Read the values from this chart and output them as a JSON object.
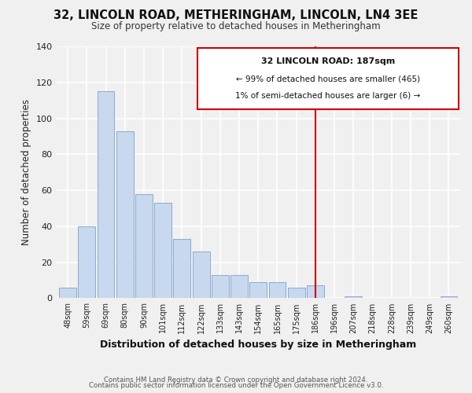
{
  "title": "32, LINCOLN ROAD, METHERINGHAM, LINCOLN, LN4 3EE",
  "subtitle": "Size of property relative to detached houses in Metheringham",
  "xlabel": "Distribution of detached houses by size in Metheringham",
  "ylabel": "Number of detached properties",
  "bar_labels": [
    "48sqm",
    "59sqm",
    "69sqm",
    "80sqm",
    "90sqm",
    "101sqm",
    "112sqm",
    "122sqm",
    "133sqm",
    "143sqm",
    "154sqm",
    "165sqm",
    "175sqm",
    "186sqm",
    "196sqm",
    "207sqm",
    "218sqm",
    "228sqm",
    "239sqm",
    "249sqm",
    "260sqm"
  ],
  "bar_values": [
    6,
    40,
    115,
    93,
    58,
    53,
    33,
    26,
    13,
    13,
    9,
    9,
    6,
    7,
    0,
    1,
    0,
    0,
    0,
    0,
    1
  ],
  "bar_color": "#c8d8ee",
  "bar_edge_color": "#8aaad0",
  "ylim": [
    0,
    140
  ],
  "vline_index": 13,
  "vline_color": "#cc0000",
  "annotation_title": "32 LINCOLN ROAD: 187sqm",
  "annotation_line1": "← 99% of detached houses are smaller (465)",
  "annotation_line2": "1% of semi-detached houses are larger (6) →",
  "footer_line1": "Contains HM Land Registry data © Crown copyright and database right 2024.",
  "footer_line2": "Contains public sector information licensed under the Open Government Licence v3.0.",
  "plot_bg_left": "#eef2f8",
  "plot_bg_right": "#f8f8fc",
  "grid_color": "#d8d8d8",
  "outer_bg": "#f0f0f0"
}
